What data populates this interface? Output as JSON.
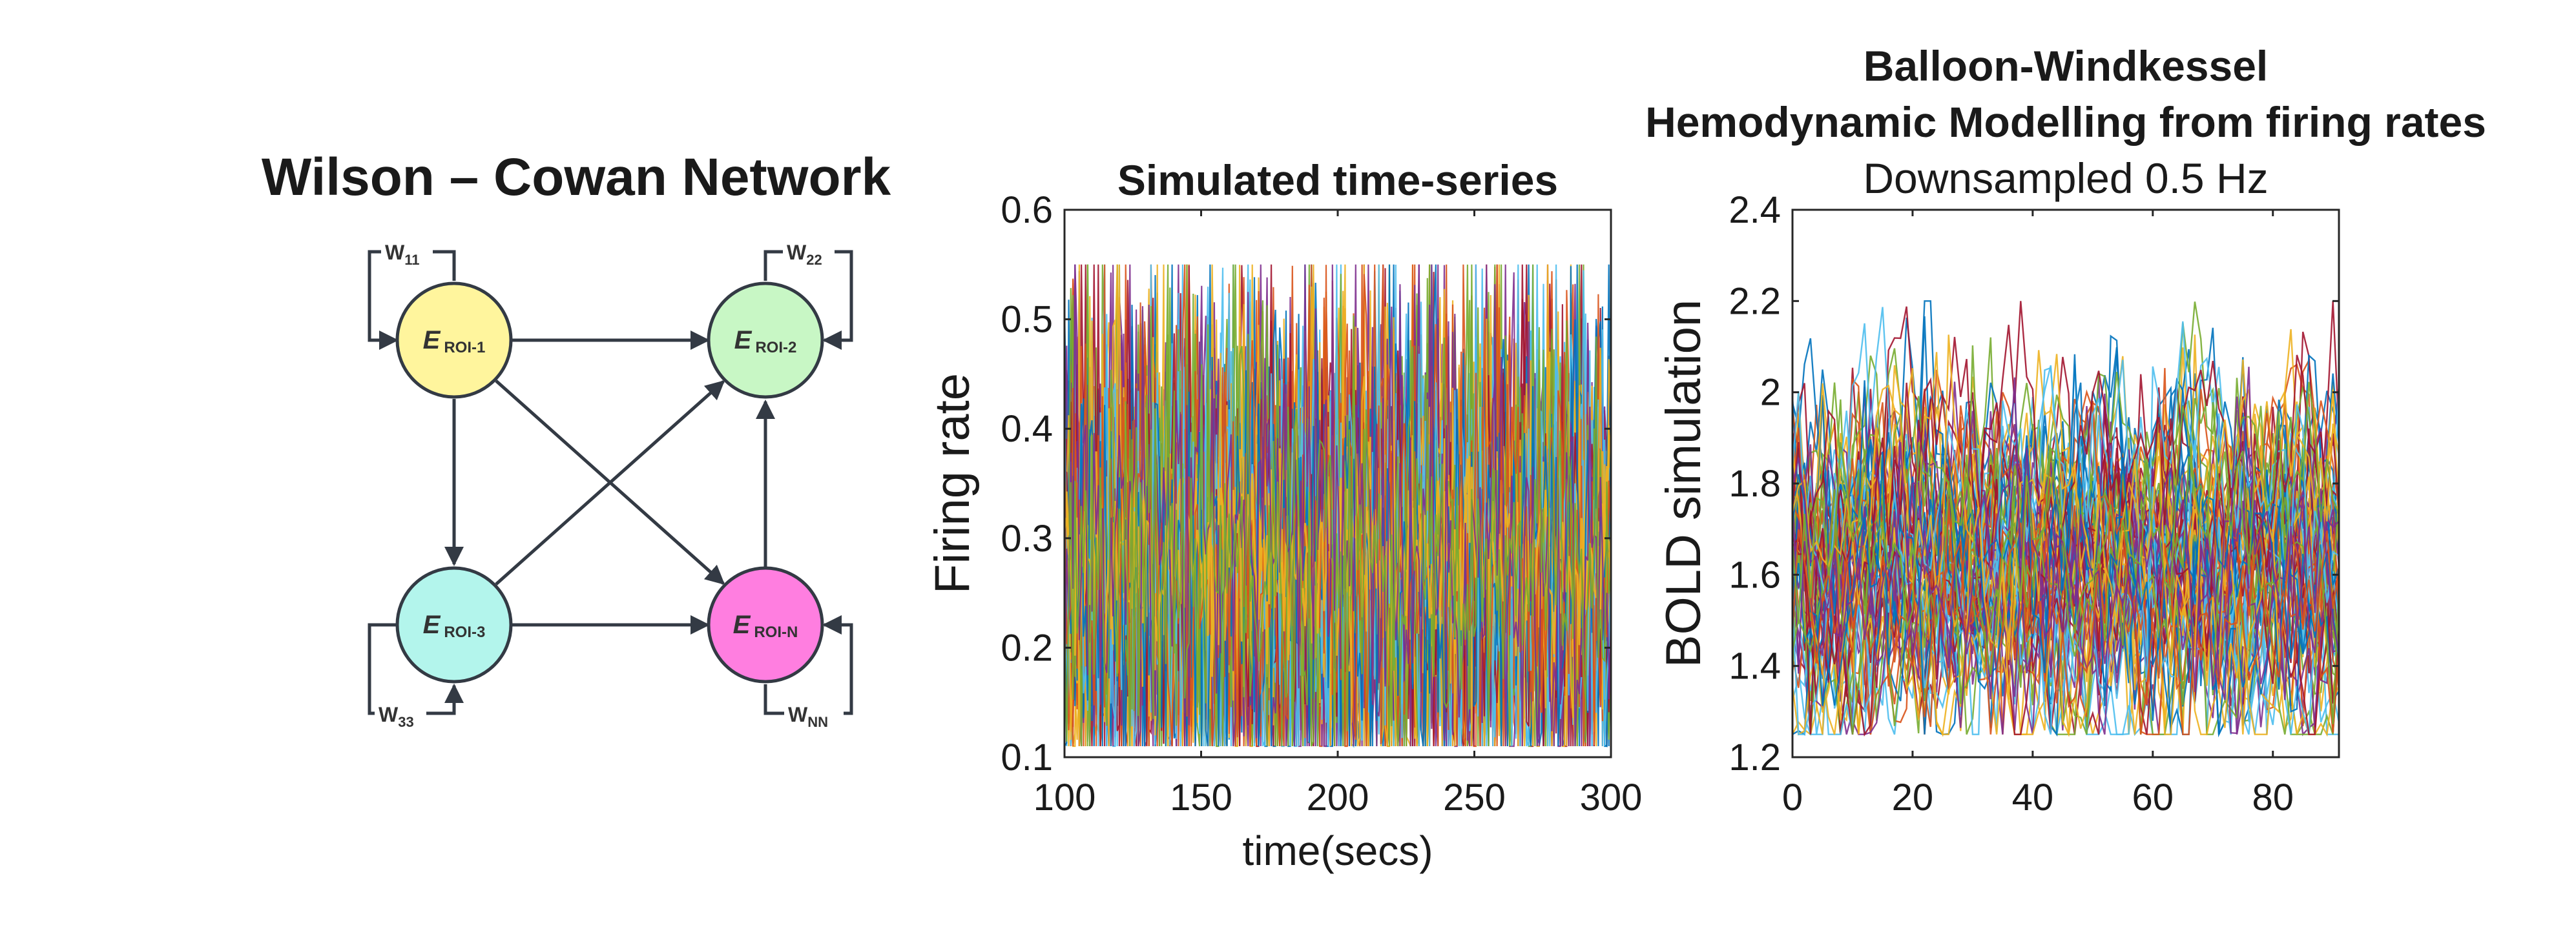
{
  "diagram": {
    "title": "Wilson – Cowan Network",
    "nodes": [
      {
        "id": "n1",
        "main": "E",
        "sub": "ROI-1",
        "color": "#fff59d"
      },
      {
        "id": "n2",
        "main": "E",
        "sub": "ROI-2",
        "color": "#c8f7c5"
      },
      {
        "id": "n3",
        "main": "E",
        "sub": "ROI-3",
        "color": "#b3f5ec"
      },
      {
        "id": "n4",
        "main": "E",
        "sub": "ROI-N",
        "color": "#ff7ee0"
      }
    ],
    "weights": [
      {
        "main": "W",
        "sub": "11"
      },
      {
        "main": "W",
        "sub": "22"
      },
      {
        "main": "W",
        "sub": "33"
      },
      {
        "main": "W",
        "sub": "NN"
      }
    ],
    "edge_color": "#333a44"
  },
  "chart_data": [
    {
      "type": "line",
      "title": "Simulated time-series",
      "xlabel": "time(secs)",
      "ylabel": "Firing rate",
      "xlim": [
        100,
        300
      ],
      "ylim": [
        0.1,
        0.6
      ],
      "xticks": [
        "100",
        "150",
        "200",
        "250",
        "300"
      ],
      "yticks": [
        "0.1",
        "0.2",
        "0.3",
        "0.4",
        "0.5",
        "0.6"
      ],
      "grid": false,
      "series_summary": {
        "count": 68,
        "x_start": 100,
        "x_end": 300,
        "typical_range": [
          0.13,
          0.52
        ],
        "dominant_band": [
          0.22,
          0.35
        ],
        "center": 0.28
      },
      "colors": [
        "#0072bd",
        "#d95319",
        "#edb120",
        "#7e2f8e",
        "#77ac30",
        "#4dbeee",
        "#a2142f"
      ]
    },
    {
      "type": "line",
      "title": "Balloon-Windkessel",
      "title_line2": "Hemodynamic Modelling from firing rates",
      "subtitle": "Downsampled 0.5 Hz",
      "xlabel": "",
      "ylabel": "BOLD simulation",
      "xlim": [
        0,
        91
      ],
      "ylim": [
        1.2,
        2.4
      ],
      "xticks": [
        "0",
        "20",
        "40",
        "60",
        "80"
      ],
      "yticks": [
        "1.2",
        "1.4",
        "1.6",
        "1.8",
        "2",
        "2.2",
        "2.4"
      ],
      "grid": false,
      "series_summary": {
        "count": 68,
        "x_start": 0,
        "x_end": 91,
        "typical_range": [
          1.3,
          2.1
        ],
        "center": 1.62
      },
      "colors": [
        "#0072bd",
        "#d95319",
        "#edb120",
        "#7e2f8e",
        "#77ac30",
        "#4dbeee",
        "#a2142f"
      ]
    }
  ]
}
